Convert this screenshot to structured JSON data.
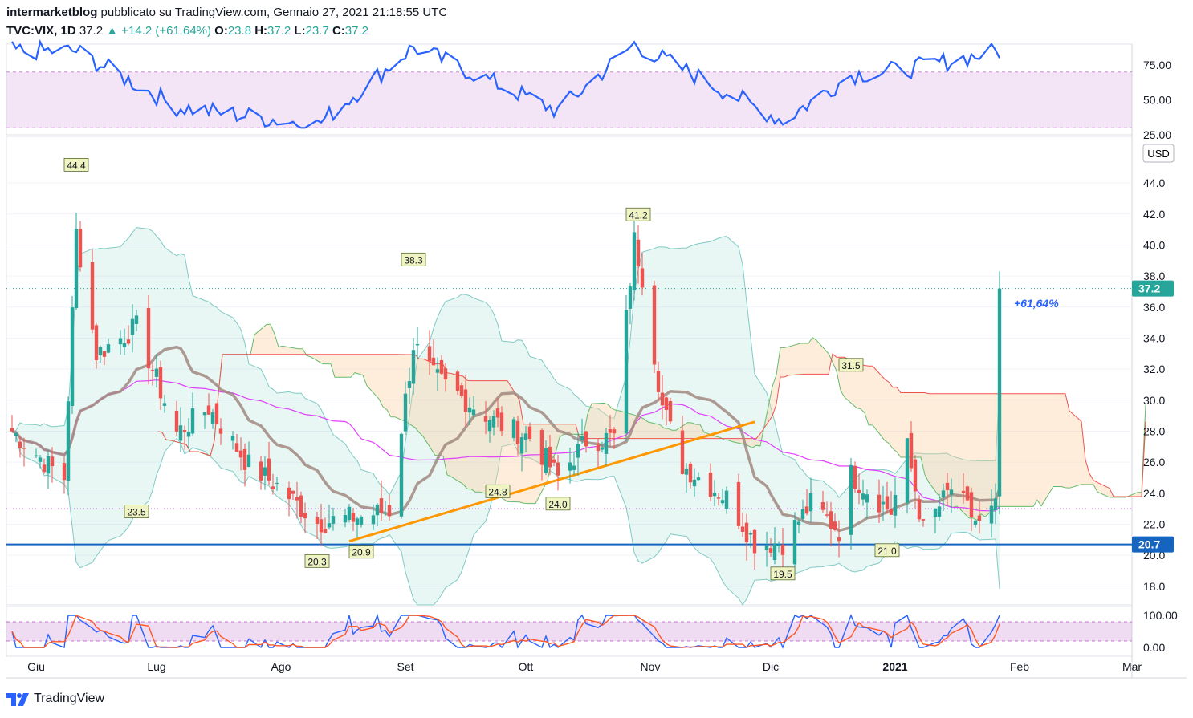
{
  "header": {
    "author": "intermarketblog",
    "published": "pubblicato su TradingView.com, Gennaio 27, 2021 21:18:55 UTC",
    "symbol": "TVC:VIX, 1D",
    "last": "37.2",
    "change": "▲ +14.2 (+61.64%)",
    "o_label": "O:",
    "o_val": "23.8",
    "h_label": "H:",
    "h_val": "37.2",
    "l_label": "L:",
    "l_val": "23.7",
    "c_label": "C:",
    "c_val": "37.2"
  },
  "currency_badge": "USD",
  "footer": {
    "brand": "TradingView"
  },
  "colors": {
    "up": "#26a69a",
    "down": "#ef5350",
    "rsi": "#2962ff",
    "ema": "#a1887f",
    "sma": "#e040fb",
    "bb": "#80cbc4",
    "kumo_bear": "#ffcc99",
    "kumo_bull": "#a5d6a7",
    "trend": "#ff9800",
    "support": "#1565c0",
    "band": "#e1bee7"
  },
  "chart_data": [
    {
      "type": "candlestick",
      "panel": "price",
      "symbol": "TVC:VIX",
      "interval": "1D",
      "ylim": [
        16.8,
        46.8
      ],
      "y_ticks": [
        "44.0",
        "42.0",
        "40.0",
        "38.0",
        "36.0",
        "34.0",
        "32.0",
        "30.0",
        "28.0",
        "26.0",
        "24.0",
        "22.0",
        "20.0",
        "18.0"
      ],
      "x_ticks": [
        "Giu",
        "Lug",
        "Ago",
        "Set",
        "Ott",
        "Nov",
        "Dic",
        "2021",
        "Feb",
        "Mar"
      ],
      "last_price_label": "37.2",
      "support_level": 20.7,
      "support_label": "20.7",
      "change_annotation": "+61,64%",
      "pivot_labels": [
        {
          "label": "44.4",
          "kind": "high",
          "date": "2020-06-11"
        },
        {
          "label": "23.5",
          "kind": "low",
          "date": "2020-06-26"
        },
        {
          "label": "20.3",
          "kind": "low",
          "date": "2020-08-10"
        },
        {
          "label": "20.9",
          "kind": "low",
          "date": "2020-08-21"
        },
        {
          "label": "38.3",
          "kind": "high",
          "date": "2020-09-03"
        },
        {
          "label": "24.8",
          "kind": "low",
          "date": "2020-09-24"
        },
        {
          "label": "24.0",
          "kind": "low",
          "date": "2020-10-09"
        },
        {
          "label": "41.2",
          "kind": "high",
          "date": "2020-10-29"
        },
        {
          "label": "19.5",
          "kind": "low",
          "date": "2020-12-04"
        },
        {
          "label": "31.5",
          "kind": "high",
          "date": "2020-12-21"
        },
        {
          "label": "21.0",
          "kind": "low",
          "date": "2020-12-30"
        }
      ],
      "close_path": [
        {
          "date": "2020-05-26",
          "close": 28.0
        },
        {
          "date": "2020-06-04",
          "close": 25.8
        },
        {
          "date": "2020-06-08",
          "close": 25.0
        },
        {
          "date": "2020-06-11",
          "close": 40.8
        },
        {
          "date": "2020-06-16",
          "close": 33.0
        },
        {
          "date": "2020-06-26",
          "close": 34.7
        },
        {
          "date": "2020-07-06",
          "close": 27.9
        },
        {
          "date": "2020-07-14",
          "close": 29.5
        },
        {
          "date": "2020-07-24",
          "close": 25.8
        },
        {
          "date": "2020-07-31",
          "close": 24.5
        },
        {
          "date": "2020-08-10",
          "close": 22.1
        },
        {
          "date": "2020-08-21",
          "close": 22.5
        },
        {
          "date": "2020-08-28",
          "close": 22.9
        },
        {
          "date": "2020-09-03",
          "close": 33.6
        },
        {
          "date": "2020-09-08",
          "close": 31.5
        },
        {
          "date": "2020-09-24",
          "close": 28.5
        },
        {
          "date": "2020-10-02",
          "close": 27.6
        },
        {
          "date": "2020-10-09",
          "close": 25.0
        },
        {
          "date": "2020-10-16",
          "close": 27.4
        },
        {
          "date": "2020-10-23",
          "close": 27.6
        },
        {
          "date": "2020-10-28",
          "close": 40.3
        },
        {
          "date": "2020-10-30",
          "close": 38.0
        },
        {
          "date": "2020-11-04",
          "close": 29.6
        },
        {
          "date": "2020-11-09",
          "close": 25.8
        },
        {
          "date": "2020-11-20",
          "close": 23.7
        },
        {
          "date": "2020-11-27",
          "close": 20.8
        },
        {
          "date": "2020-12-04",
          "close": 20.8
        },
        {
          "date": "2020-12-11",
          "close": 23.3
        },
        {
          "date": "2020-12-18",
          "close": 21.6
        },
        {
          "date": "2020-12-21",
          "close": 25.2
        },
        {
          "date": "2020-12-31",
          "close": 22.8
        },
        {
          "date": "2021-01-04",
          "close": 26.9
        },
        {
          "date": "2021-01-08",
          "close": 21.6
        },
        {
          "date": "2021-01-15",
          "close": 24.3
        },
        {
          "date": "2021-01-22",
          "close": 21.9
        },
        {
          "date": "2021-01-26",
          "close": 23.0
        },
        {
          "date": "2021-01-27",
          "close": 37.2
        }
      ]
    },
    {
      "type": "line",
      "panel": "rsi",
      "ylim": [
        25,
        90
      ],
      "y_ticks": [
        "75.00",
        "50.00",
        "25.00"
      ],
      "band": [
        30,
        70
      ],
      "values": [
        {
          "date": "2020-06-11",
          "value": 85
        },
        {
          "date": "2020-07-06",
          "value": 45
        },
        {
          "date": "2020-08-10",
          "value": 32
        },
        {
          "date": "2020-09-03",
          "value": 88
        },
        {
          "date": "2020-10-09",
          "value": 42
        },
        {
          "date": "2020-10-28",
          "value": 90
        },
        {
          "date": "2020-12-04",
          "value": 35
        },
        {
          "date": "2020-12-21",
          "value": 68
        },
        {
          "date": "2021-01-04",
          "value": 72
        },
        {
          "date": "2021-01-27",
          "value": 85
        }
      ]
    },
    {
      "type": "line",
      "panel": "stochastic",
      "ylim": [
        0,
        100
      ],
      "y_ticks": [
        "100.00",
        "0.00"
      ],
      "band": [
        20,
        80
      ],
      "series": [
        {
          "values": []
        },
        {
          "values": []
        }
      ]
    }
  ]
}
